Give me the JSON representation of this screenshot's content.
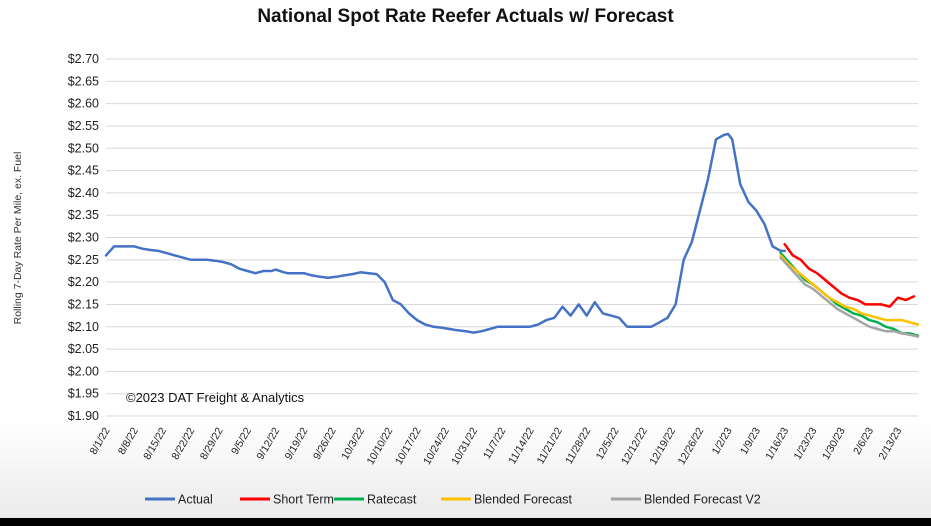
{
  "chart_data": {
    "type": "line",
    "title": "National Spot Rate Reefer Actuals w/ Forecast",
    "ylabel": "Rolling 7-Day Rate Per Mile, ex. Fuel",
    "xlabel": "",
    "annotation": "©2023 DAT Freight & Analytics",
    "ylim": [
      1.9,
      2.7
    ],
    "y_ticks": [
      "$2.70",
      "$2.65",
      "$2.60",
      "$2.55",
      "$2.50",
      "$2.45",
      "$2.40",
      "$2.35",
      "$2.30",
      "$2.25",
      "$2.20",
      "$2.15",
      "$2.10",
      "$2.05",
      "$2.00",
      "$1.95",
      "$1.90"
    ],
    "x_ticks": [
      "8/1/22",
      "8/8/22",
      "8/15/22",
      "8/22/22",
      "8/29/22",
      "9/5/22",
      "9/12/22",
      "9/19/22",
      "9/26/22",
      "10/3/22",
      "10/10/22",
      "10/17/22",
      "10/24/22",
      "10/31/22",
      "11/7/22",
      "11/14/22",
      "11/21/22",
      "11/28/22",
      "12/5/22",
      "12/12/22",
      "12/19/22",
      "12/26/22",
      "1/2/23",
      "1/9/23",
      "1/16/23",
      "1/23/23",
      "1/30/23",
      "2/6/23",
      "2/13/23"
    ],
    "x_range": [
      "2022-08-01",
      "2023-02-18"
    ],
    "grid": true,
    "legend_position": "bottom",
    "series": [
      {
        "name": "Actual",
        "color": "#4472c4",
        "x": [
          "2022-08-01",
          "2022-08-02",
          "2022-08-03",
          "2022-08-04",
          "2022-08-06",
          "2022-08-08",
          "2022-08-10",
          "2022-08-12",
          "2022-08-14",
          "2022-08-16",
          "2022-08-18",
          "2022-08-20",
          "2022-08-22",
          "2022-08-24",
          "2022-08-26",
          "2022-08-28",
          "2022-08-30",
          "2022-09-01",
          "2022-09-02",
          "2022-09-03",
          "2022-09-05",
          "2022-09-07",
          "2022-09-09",
          "2022-09-11",
          "2022-09-12",
          "2022-09-14",
          "2022-09-15",
          "2022-09-17",
          "2022-09-19",
          "2022-09-21",
          "2022-09-23",
          "2022-09-25",
          "2022-09-27",
          "2022-09-29",
          "2022-10-01",
          "2022-10-03",
          "2022-10-05",
          "2022-10-07",
          "2022-10-09",
          "2022-10-11",
          "2022-10-13",
          "2022-10-15",
          "2022-10-17",
          "2022-10-19",
          "2022-10-21",
          "2022-10-23",
          "2022-10-25",
          "2022-10-27",
          "2022-10-29",
          "2022-10-31",
          "2022-11-02",
          "2022-11-04",
          "2022-11-06",
          "2022-11-08",
          "2022-11-10",
          "2022-11-12",
          "2022-11-14",
          "2022-11-16",
          "2022-11-18",
          "2022-11-20",
          "2022-11-22",
          "2022-11-24",
          "2022-11-26",
          "2022-11-28",
          "2022-11-30",
          "2022-12-02",
          "2022-12-04",
          "2022-12-06",
          "2022-12-08",
          "2022-12-10",
          "2022-12-12",
          "2022-12-14",
          "2022-12-16",
          "2022-12-18",
          "2022-12-20",
          "2022-12-22",
          "2022-12-24",
          "2022-12-26",
          "2022-12-28",
          "2022-12-30",
          "2023-01-01",
          "2023-01-02",
          "2023-01-03",
          "2023-01-05",
          "2023-01-07",
          "2023-01-09",
          "2023-01-11",
          "2023-01-13",
          "2023-01-15",
          "2023-01-16"
        ],
        "values": [
          2.26,
          2.27,
          2.28,
          2.28,
          2.28,
          2.28,
          2.275,
          2.272,
          2.27,
          2.265,
          2.26,
          2.255,
          2.25,
          2.25,
          2.25,
          2.248,
          2.245,
          2.24,
          2.235,
          2.23,
          2.225,
          2.22,
          2.225,
          2.225,
          2.228,
          2.222,
          2.22,
          2.22,
          2.22,
          2.215,
          2.212,
          2.21,
          2.212,
          2.215,
          2.218,
          2.222,
          2.22,
          2.218,
          2.2,
          2.16,
          2.15,
          2.13,
          2.115,
          2.105,
          2.1,
          2.098,
          2.095,
          2.092,
          2.09,
          2.087,
          2.09,
          2.095,
          2.1,
          2.1,
          2.1,
          2.1,
          2.1,
          2.105,
          2.115,
          2.12,
          2.145,
          2.125,
          2.15,
          2.125,
          2.155,
          2.13,
          2.125,
          2.12,
          2.1,
          2.1,
          2.1,
          2.1,
          2.11,
          2.12,
          2.15,
          2.25,
          2.29,
          2.36,
          2.43,
          2.52,
          2.53,
          2.532,
          2.52,
          2.42,
          2.38,
          2.36,
          2.33,
          2.28,
          2.27,
          2.27
        ]
      },
      {
        "name": "Short Term",
        "color": "#ff0000",
        "x": [
          "2023-01-16",
          "2023-01-18",
          "2023-01-20",
          "2023-01-22",
          "2023-01-24",
          "2023-01-26",
          "2023-01-28",
          "2023-01-30",
          "2023-02-01",
          "2023-02-03",
          "2023-02-05",
          "2023-02-07",
          "2023-02-09",
          "2023-02-11",
          "2023-02-13",
          "2023-02-15",
          "2023-02-17"
        ],
        "values": [
          2.285,
          2.26,
          2.25,
          2.23,
          2.22,
          2.205,
          2.19,
          2.175,
          2.165,
          2.16,
          2.15,
          2.15,
          2.15,
          2.145,
          2.165,
          2.16,
          2.168
        ]
      },
      {
        "name": "Ratecast",
        "color": "#00b050",
        "x": [
          "2023-01-15",
          "2023-01-17",
          "2023-01-19",
          "2023-01-21",
          "2023-01-23",
          "2023-01-25",
          "2023-01-27",
          "2023-01-29",
          "2023-01-31",
          "2023-02-02",
          "2023-02-04",
          "2023-02-06",
          "2023-02-08",
          "2023-02-10",
          "2023-02-12",
          "2023-02-14",
          "2023-02-16",
          "2023-02-18"
        ],
        "values": [
          2.265,
          2.245,
          2.225,
          2.205,
          2.195,
          2.18,
          2.165,
          2.15,
          2.14,
          2.13,
          2.125,
          2.115,
          2.11,
          2.1,
          2.095,
          2.085,
          2.085,
          2.08
        ]
      },
      {
        "name": "Blended Forecast",
        "color": "#ffc000",
        "x": [
          "2023-01-15",
          "2023-01-17",
          "2023-01-19",
          "2023-01-21",
          "2023-01-23",
          "2023-01-25",
          "2023-01-27",
          "2023-01-29",
          "2023-01-31",
          "2023-02-02",
          "2023-02-04",
          "2023-02-06",
          "2023-02-08",
          "2023-02-10",
          "2023-02-12",
          "2023-02-14",
          "2023-02-16",
          "2023-02-18"
        ],
        "values": [
          2.26,
          2.24,
          2.225,
          2.21,
          2.195,
          2.18,
          2.165,
          2.155,
          2.145,
          2.14,
          2.13,
          2.125,
          2.12,
          2.115,
          2.115,
          2.115,
          2.11,
          2.105
        ]
      },
      {
        "name": "Blended Forecast V2",
        "color": "#a5a5a5",
        "x": [
          "2023-01-15",
          "2023-01-17",
          "2023-01-19",
          "2023-01-21",
          "2023-01-23",
          "2023-01-25",
          "2023-01-27",
          "2023-01-29",
          "2023-01-31",
          "2023-02-02",
          "2023-02-04",
          "2023-02-06",
          "2023-02-08",
          "2023-02-10",
          "2023-02-12",
          "2023-02-14",
          "2023-02-16",
          "2023-02-18"
        ],
        "values": [
          2.255,
          2.235,
          2.215,
          2.195,
          2.185,
          2.17,
          2.155,
          2.14,
          2.13,
          2.12,
          2.11,
          2.1,
          2.095,
          2.09,
          2.09,
          2.085,
          2.082,
          2.078
        ]
      }
    ]
  }
}
